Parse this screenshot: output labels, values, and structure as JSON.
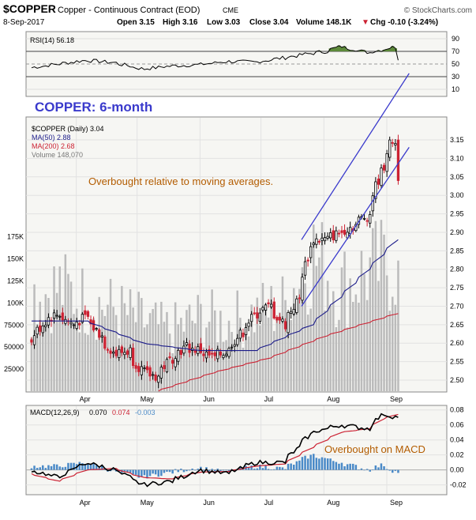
{
  "header": {
    "symbol": "$COPPER",
    "name": "Copper - Continuous Contract (EOD)",
    "exchange": "CME",
    "brand": "© StockCharts.com",
    "date": "8-Sep-2017",
    "open": "Open 3.15",
    "high": "High 3.16",
    "low": "Low 3.03",
    "close": "Close 3.04",
    "volume": "Volume 148.1K",
    "change": "Chg -0.10 (-3.24%)",
    "change_arrow": "▼"
  },
  "colors": {
    "up_candle": "#000000",
    "down_candle": "#cc2233",
    "ma50": "#1c1c8a",
    "ma200": "#cc2233",
    "volume": "#bbbbbb",
    "channel": "#3a3acc",
    "annotation_blue": "#3a3acc",
    "annotation_brown": "#b35c00",
    "rsi_line": "#000000",
    "rsi_fill": "#5d8a3a",
    "macd_line": "#000000",
    "signal_line": "#cc2233",
    "hist": "#4a8ac8",
    "panel_bg": "#f6f6f3"
  },
  "chart_data": [
    {
      "type": "line",
      "panel": "rsi",
      "legend": "RSI(14) 56.18",
      "y_ticks": [
        10,
        30,
        50,
        70,
        90
      ],
      "ylim": [
        0,
        100
      ],
      "levels": [
        30,
        70
      ],
      "series": [
        {
          "x": [
            "2017-03-10",
            "2017-03-24",
            "2017-04-07",
            "2017-04-21",
            "2017-05-05",
            "2017-05-19",
            "2017-06-02",
            "2017-06-16",
            "2017-06-30",
            "2017-07-14",
            "2017-07-28",
            "2017-08-04",
            "2017-08-11",
            "2017-08-18",
            "2017-08-25",
            "2017-09-01",
            "2017-09-07",
            "2017-09-08"
          ],
          "values": [
            44,
            50,
            56,
            52,
            42,
            47,
            49,
            54,
            53,
            60,
            67,
            70,
            78,
            73,
            68,
            73,
            77,
            56
          ]
        }
      ]
    },
    {
      "type": "line",
      "panel": "price",
      "title": "COPPER: 6-month",
      "annotation": "Overbought relative to moving averages.",
      "legend": [
        "$COPPER (Daily) 3.04",
        "MA(50) 2.88",
        "MA(200) 2.68",
        "Volume 148,070"
      ],
      "y_ticks": [
        2.5,
        2.55,
        2.6,
        2.65,
        2.7,
        2.75,
        2.8,
        2.85,
        2.9,
        2.95,
        3.0,
        3.05,
        3.1,
        3.15
      ],
      "y_tick_labels": [
        "2.50",
        "2.55",
        "2.60",
        "2.65",
        "2.70",
        "2.75",
        "2.80",
        "2.85",
        "2.90",
        "2.95",
        "3.00",
        "3.05",
        "3.10",
        "3.15"
      ],
      "ylim": [
        2.47,
        3.21
      ],
      "volume_ticks": [
        25000,
        50000,
        75000,
        100000,
        125000,
        150000,
        175000
      ],
      "volume_tick_labels": [
        "25000",
        "50000",
        "75000",
        "100K",
        "125K",
        "150K",
        "175K"
      ],
      "volume_lim": [
        0,
        310000
      ],
      "x_labels": [
        "Apr",
        "May",
        "Jun",
        "Jul",
        "Aug",
        "Sep"
      ],
      "x_label_dates": [
        "2017-04-01",
        "2017-05-01",
        "2017-06-01",
        "2017-07-01",
        "2017-08-01",
        "2017-09-01"
      ],
      "close_series": {
        "name": "$COPPER",
        "x": [
          "2017-03-10",
          "2017-03-17",
          "2017-03-24",
          "2017-03-31",
          "2017-04-07",
          "2017-04-14",
          "2017-04-21",
          "2017-04-28",
          "2017-05-05",
          "2017-05-12",
          "2017-05-19",
          "2017-05-26",
          "2017-06-02",
          "2017-06-09",
          "2017-06-16",
          "2017-06-23",
          "2017-06-30",
          "2017-07-07",
          "2017-07-14",
          "2017-07-21",
          "2017-07-28",
          "2017-08-04",
          "2017-08-11",
          "2017-08-18",
          "2017-08-25",
          "2017-09-01",
          "2017-09-06",
          "2017-09-07",
          "2017-09-08"
        ],
        "values": [
          2.6,
          2.66,
          2.68,
          2.65,
          2.67,
          2.62,
          2.57,
          2.58,
          2.52,
          2.51,
          2.56,
          2.59,
          2.58,
          2.56,
          2.58,
          2.63,
          2.68,
          2.7,
          2.65,
          2.72,
          2.88,
          2.88,
          2.9,
          2.92,
          2.95,
          3.08,
          3.15,
          3.14,
          3.04
        ]
      },
      "ma50": {
        "name": "MA(50)",
        "x": [
          "2017-03-10",
          "2017-04-07",
          "2017-05-05",
          "2017-06-02",
          "2017-06-30",
          "2017-07-28",
          "2017-08-25",
          "2017-09-08"
        ],
        "values": [
          2.66,
          2.66,
          2.6,
          2.58,
          2.58,
          2.65,
          2.8,
          2.88
        ]
      },
      "ma200": {
        "name": "MA(200)",
        "x": [
          "2017-05-12",
          "2017-06-09",
          "2017-07-07",
          "2017-08-04",
          "2017-09-08"
        ],
        "values": [
          2.47,
          2.52,
          2.56,
          2.62,
          2.68
        ]
      },
      "volume": {
        "name": "Volume",
        "x": [
          "2017-03-10",
          "2017-03-24",
          "2017-04-07",
          "2017-04-21",
          "2017-05-05",
          "2017-05-19",
          "2017-06-02",
          "2017-06-16",
          "2017-06-30",
          "2017-07-14",
          "2017-07-28",
          "2017-08-11",
          "2017-08-25",
          "2017-09-08"
        ],
        "values": [
          110000,
          120000,
          105000,
          95000,
          80000,
          70000,
          85000,
          80000,
          90000,
          100000,
          160000,
          120000,
          140000,
          148070
        ]
      },
      "channel": {
        "upper": {
          "x": [
            "2017-07-21",
            "2017-09-12"
          ],
          "values": [
            2.88,
            3.33
          ]
        },
        "lower": {
          "x": [
            "2017-07-21",
            "2017-09-12"
          ],
          "values": [
            2.7,
            3.13
          ]
        }
      }
    },
    {
      "type": "line",
      "panel": "macd",
      "legend": "MACD(12,26,9)",
      "legend_macd": "0.070",
      "legend_signal": "0.074",
      "legend_hist": "-0.003",
      "annotation": "Overbought on MACD",
      "y_ticks": [
        -0.02,
        0.0,
        0.02,
        0.04,
        0.06,
        0.08
      ],
      "y_tick_labels": [
        "-0.02",
        "0.00",
        "0.02",
        "0.04",
        "0.06",
        "0.08"
      ],
      "ylim": [
        -0.032,
        0.085
      ],
      "x_labels": [
        "Apr",
        "May",
        "Jun",
        "Jul",
        "Aug",
        "Sep"
      ],
      "series": [
        {
          "name": "MACD",
          "x": [
            "2017-03-10",
            "2017-03-24",
            "2017-04-07",
            "2017-04-21",
            "2017-05-05",
            "2017-05-19",
            "2017-06-02",
            "2017-06-16",
            "2017-06-30",
            "2017-07-14",
            "2017-07-28",
            "2017-08-11",
            "2017-08-25",
            "2017-09-01",
            "2017-09-08"
          ],
          "values": [
            0.0,
            -0.01,
            0.01,
            0.0,
            -0.02,
            -0.015,
            0.0,
            -0.005,
            0.01,
            0.01,
            0.05,
            0.06,
            0.055,
            0.075,
            0.07
          ]
        },
        {
          "name": "Signal",
          "x": [
            "2017-03-10",
            "2017-03-24",
            "2017-04-07",
            "2017-04-21",
            "2017-05-05",
            "2017-05-19",
            "2017-06-02",
            "2017-06-16",
            "2017-06-30",
            "2017-07-14",
            "2017-07-28",
            "2017-08-11",
            "2017-08-25",
            "2017-09-01",
            "2017-09-08"
          ],
          "values": [
            -0.005,
            -0.015,
            0.0,
            0.002,
            -0.01,
            -0.012,
            -0.003,
            -0.002,
            0.005,
            0.008,
            0.03,
            0.05,
            0.055,
            0.068,
            0.074
          ]
        }
      ]
    }
  ]
}
